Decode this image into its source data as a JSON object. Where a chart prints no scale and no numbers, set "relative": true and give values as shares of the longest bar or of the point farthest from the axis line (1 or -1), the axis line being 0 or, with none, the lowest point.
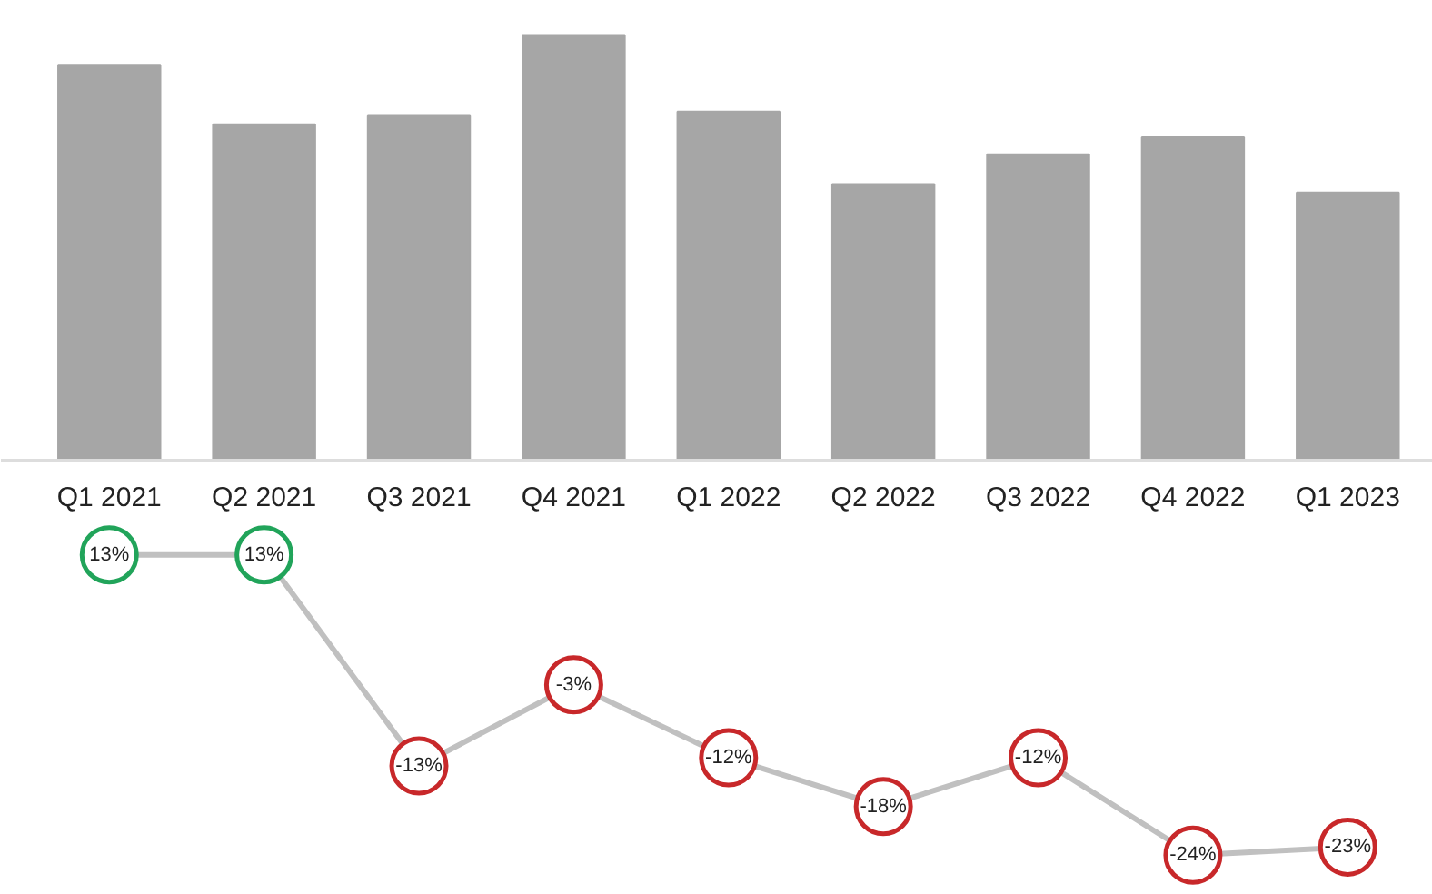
{
  "chart_data": [
    {
      "type": "bar",
      "relative": true,
      "categories": [
        "Q1 2021",
        "Q2 2021",
        "Q3 2021",
        "Q4 2021",
        "Q1 2022",
        "Q2 2022",
        "Q3 2022",
        "Q4 2022",
        "Q1 2023"
      ],
      "values": [
        0.93,
        0.79,
        0.81,
        1,
        0.82,
        0.65,
        0.72,
        0.76,
        0.63
      ],
      "color": "#a6a6a6",
      "grid": false
    },
    {
      "type": "line",
      "categories": [
        null,
        null,
        null,
        null,
        null,
        null,
        null,
        null,
        null
      ],
      "tick_labels": false,
      "values": [
        13,
        13,
        -13,
        -3,
        -12,
        -18,
        -12,
        -24,
        -23
      ],
      "color": "#c0c0c0",
      "marker": "circle",
      "colors": [
        "#21a45a",
        "#21a45a",
        "#c8282a",
        "#c8282a",
        "#c8282a",
        "#c8282a",
        "#c8282a",
        "#c8282a",
        "#c8282a"
      ],
      "value_labels": [
        "13%",
        "13%",
        "-13%",
        "-3%",
        "-12%",
        "-18%",
        "-12%",
        "-24%",
        "-23%"
      ]
    }
  ]
}
